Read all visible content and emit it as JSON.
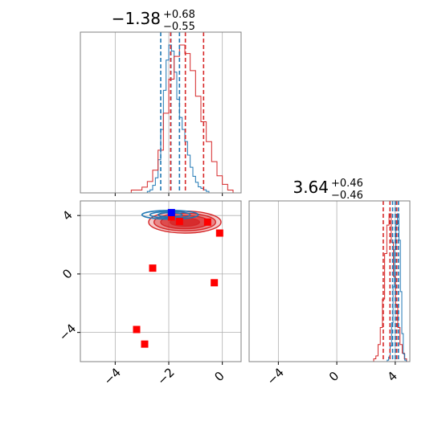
{
  "chart_data": {
    "type": "corner",
    "title_x": {
      "median": "−1.38",
      "plus": "+0.68",
      "minus": "−0.55"
    },
    "title_y": {
      "median": "3.64",
      "plus": "+0.46",
      "minus": "−0.46"
    },
    "axes": {
      "x_range": [
        -5.3,
        0.7
      ],
      "y_range": [
        -6.0,
        5.0
      ],
      "x_ticks": [
        -4,
        -2,
        0
      ],
      "x_tick_labels": [
        "−4",
        "−2",
        "0"
      ],
      "y_ticks": [
        -4,
        0,
        4
      ],
      "y_tick_labels": [
        "−4",
        "0",
        "4"
      ],
      "grid": true
    },
    "colors": {
      "blue": "#1f77b4",
      "red": "#d62728",
      "square_red": "#ff0000",
      "square_blue": "#0000ff",
      "grid": "#b0b0b0",
      "frame": "#808080"
    },
    "hist_x": {
      "blue": {
        "bins": [
          -2.75,
          -2.65,
          -2.55,
          -2.45,
          -2.35,
          -2.25,
          -2.15,
          -2.05,
          -1.95,
          -1.85,
          -1.75,
          -1.65,
          -1.55,
          -1.45,
          -1.35,
          -1.25,
          -1.15,
          -1.05,
          -0.95,
          -0.85,
          -0.75,
          -0.65,
          -0.55,
          -0.45
        ],
        "values": [
          1,
          2,
          5,
          10,
          22,
          42,
          68,
          88,
          98,
          94,
          80,
          62,
          50,
          42,
          34,
          25,
          17,
          11,
          7,
          4,
          3,
          2,
          1,
          0
        ],
        "quantiles": [
          -2.3,
          -1.92,
          -1.6
        ]
      },
      "red": {
        "bins": [
          -3.5,
          -3.3,
          -3.1,
          -2.9,
          -2.7,
          -2.5,
          -2.3,
          -2.1,
          -1.9,
          -1.7,
          -1.5,
          -1.3,
          -1.1,
          -0.9,
          -0.7,
          -0.5,
          -0.3,
          -0.1,
          0.1,
          0.3
        ],
        "values": [
          0,
          1,
          1,
          2,
          4,
          8,
          15,
          28,
          40,
          48,
          52,
          49,
          43,
          34,
          25,
          18,
          11,
          6,
          3,
          1
        ],
        "quantiles": [
          -1.93,
          -1.38,
          -0.7
        ]
      }
    },
    "hist_y": {
      "red": {
        "bins": [
          2.6,
          2.75,
          2.9,
          3.05,
          3.2,
          3.35,
          3.5,
          3.65,
          3.8,
          3.95,
          4.1,
          4.25,
          4.4,
          4.55,
          4.7,
          4.85
        ],
        "values": [
          1,
          2,
          6,
          12,
          22,
          38,
          48,
          52,
          42,
          30,
          20,
          12,
          6,
          3,
          1,
          0
        ],
        "quantiles": [
          3.18,
          3.64,
          4.1
        ]
      },
      "blue": {
        "bins": [
          3.5,
          3.6,
          3.7,
          3.8,
          3.9,
          4.0,
          4.1,
          4.2,
          4.3,
          4.4,
          4.5,
          4.6,
          4.7
        ],
        "values": [
          1,
          3,
          10,
          25,
          48,
          72,
          88,
          95,
          78,
          45,
          18,
          5,
          1
        ],
        "quantiles": [
          3.82,
          4.0,
          4.22
        ]
      }
    },
    "contours": {
      "red": {
        "center": [
          -1.4,
          3.55
        ],
        "radii": [
          [
            1.35,
            0.75
          ],
          [
            1.15,
            0.6
          ],
          [
            0.9,
            0.45
          ],
          [
            0.55,
            0.28
          ]
        ],
        "alphas": [
          0.25,
          0.4,
          0.6,
          0.85
        ]
      },
      "blue": {
        "center": [
          -1.95,
          4.05
        ],
        "radii": [
          [
            1.05,
            0.3
          ],
          [
            0.75,
            0.22
          ],
          [
            0.45,
            0.14
          ]
        ]
      }
    },
    "markers_red": [
      [
        -1.9,
        3.9
      ],
      [
        -0.55,
        3.55
      ],
      [
        -0.1,
        2.8
      ],
      [
        -2.6,
        0.4
      ],
      [
        -0.3,
        -0.6
      ],
      [
        -3.2,
        -3.8
      ],
      [
        -2.9,
        -4.8
      ],
      [
        -1.6,
        3.6
      ]
    ],
    "markers_blue": [
      [
        -1.9,
        4.2
      ]
    ]
  }
}
